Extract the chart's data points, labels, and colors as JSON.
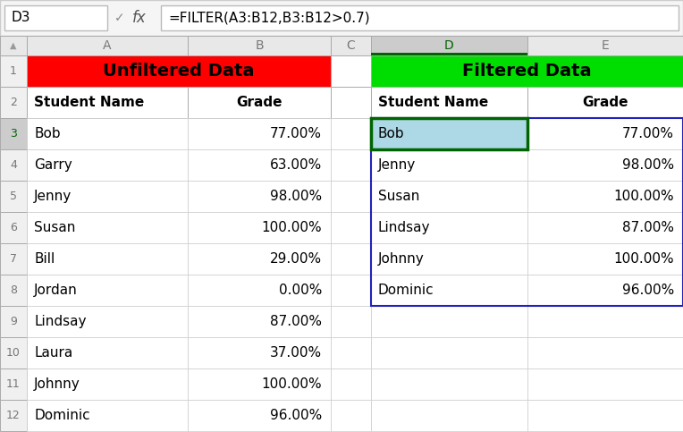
{
  "formula_bar_cell": "D3",
  "formula_bar_formula": "=FILTER(A3:B12,B3:B12>0.7)",
  "unfiltered_title": "Unfiltered Data",
  "filtered_title": "Filtered Data",
  "unfiltered_data": [
    [
      "Bob",
      "77.00%"
    ],
    [
      "Garry",
      "63.00%"
    ],
    [
      "Jenny",
      "98.00%"
    ],
    [
      "Susan",
      "100.00%"
    ],
    [
      "Bill",
      "29.00%"
    ],
    [
      "Jordan",
      "0.00%"
    ],
    [
      "Lindsay",
      "87.00%"
    ],
    [
      "Laura",
      "37.00%"
    ],
    [
      "Johnny",
      "100.00%"
    ],
    [
      "Dominic",
      "96.00%"
    ]
  ],
  "filtered_data": [
    [
      "Bob",
      "77.00%"
    ],
    [
      "Jenny",
      "98.00%"
    ],
    [
      "Susan",
      "100.00%"
    ],
    [
      "Lindsay",
      "87.00%"
    ],
    [
      "Johnny",
      "100.00%"
    ],
    [
      "Dominic",
      "96.00%"
    ]
  ],
  "unfiltered_bg": "#FF0000",
  "filtered_bg": "#00DD00",
  "cell_bg_white": "#FFFFFF",
  "cell_bg_selected": "#ADD8E6",
  "cell_border_selected": "#006400",
  "col_header_bg": "#E8E8E8",
  "col_header_selected_bg": "#CCCCCC",
  "row_header_bg": "#F0F0F0",
  "row_header_selected_bg": "#CCCCCC",
  "grid_color": "#CCCCCC",
  "fig_bg": "#F5F5F5",
  "fb_bg": "#FFFFFF",
  "fb_border": "#BBBBBB"
}
